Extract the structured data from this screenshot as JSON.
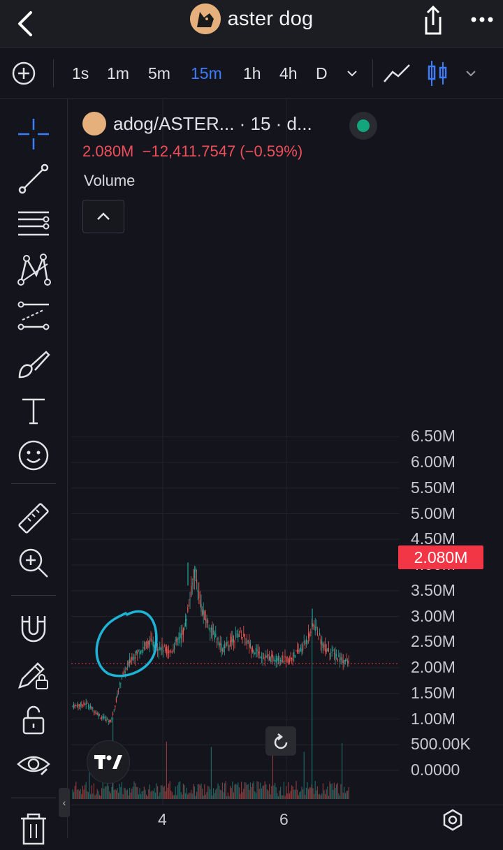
{
  "header": {
    "title": "aster dog",
    "icons": {
      "back": "chevron-left-icon",
      "share": "share-icon",
      "more": "more-dots-icon",
      "logo": "dog-logo"
    }
  },
  "toolbar": {
    "intervals": [
      "1s",
      "1m",
      "5m",
      "15m",
      "1h",
      "4h",
      "D"
    ],
    "active_interval": "15m",
    "icons": [
      "add-indicator-icon",
      "chevron-down-icon",
      "line-chart-icon",
      "candles-icon",
      "chevron-down-icon"
    ]
  },
  "left_tools": [
    "crosshair-icon",
    "trend-line-icon",
    "fib-retracement-icon",
    "pattern-icon",
    "prediction-icon",
    "brush-icon",
    "text-icon",
    "emoji-icon",
    "ruler-icon",
    "zoom-in-icon",
    "magnet-icon",
    "lock-drawing-icon",
    "unlock-icon",
    "eye-icon",
    "trash-icon"
  ],
  "legend": {
    "symbol": "adog/ASTER... · 15 · d...",
    "price": "2.080M",
    "change": "−12,411.7547 (−0.59%)",
    "volume_label": "Volume",
    "status_color": "#13a67d"
  },
  "chart_data": {
    "type": "candlestick",
    "y_ticks": [
      "6.50M",
      "6.00M",
      "5.50M",
      "5.00M",
      "4.50M",
      "4.00M",
      "3.50M",
      "3.00M",
      "2.50M",
      "2.00M",
      "1.50M",
      "1.00M",
      "500.00K",
      "0.0000"
    ],
    "x_ticks": [
      "4",
      "6"
    ],
    "last_price": 2.08,
    "last_price_label": "2.080M",
    "price_unit": "M",
    "up_color": "#26a69a",
    "down_color": "#ef5350",
    "grid": true
  },
  "annotation": {
    "shape": "hand-drawn-circle",
    "color": "#1fb3d6"
  }
}
